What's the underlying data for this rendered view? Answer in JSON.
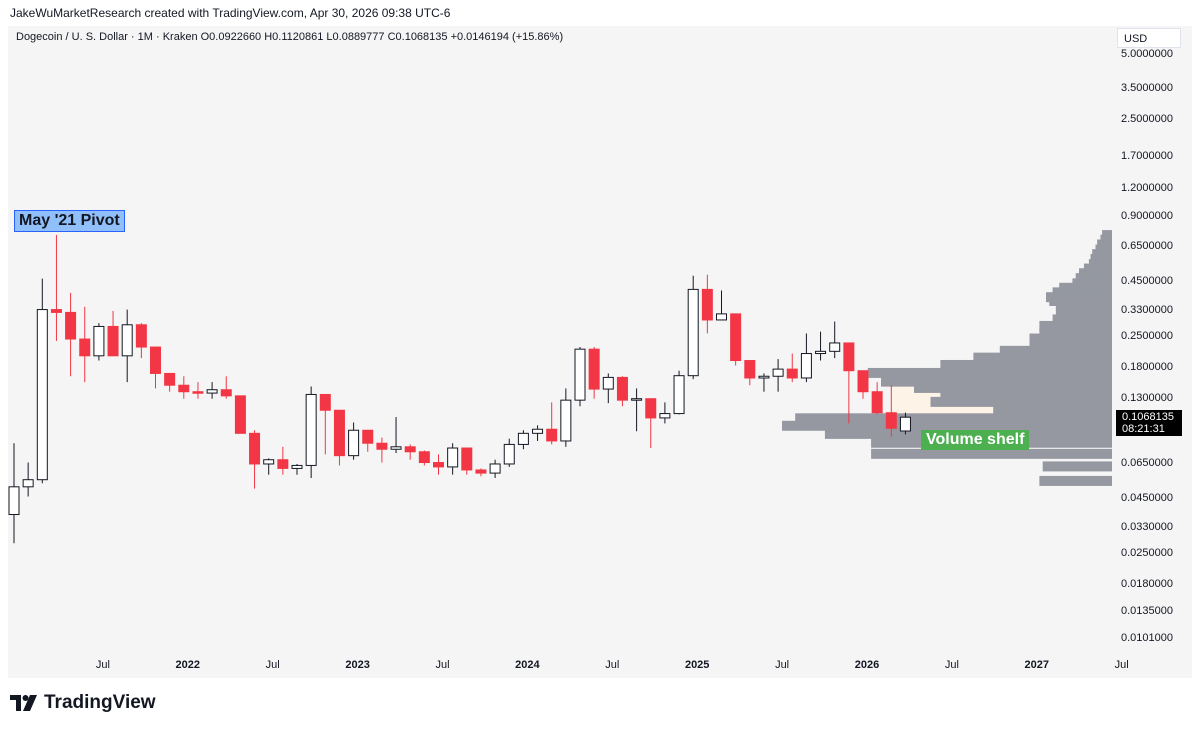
{
  "header": {
    "credit": "JakeWuMarketResearch created with TradingView.com, Apr 30, 2026 09:38 UTC-6",
    "symbol_line": "Dogecoin / U. S. Dollar · 1M · Kraken  O0.0922660  H0.1120861  L0.0889777  C0.1068135  +0.0146194 (+15.86%)",
    "currency": "USD"
  },
  "annotations": {
    "pivot": "May '21 Pivot",
    "shelf": "Volume shelf"
  },
  "last_price": {
    "value": "0.1068135",
    "countdown": "08:21:31"
  },
  "brand": {
    "name": "TradingView",
    "logo_icon": "tradingview-logo-icon"
  },
  "colors": {
    "up_fill": "#ffffff",
    "up_stroke": "#131722",
    "down": "#f23645",
    "volume_profile": "#9598a1",
    "value_area": "#fdf3e6",
    "label_green": "#4caf50",
    "label_blue": "#90bff9"
  },
  "chart_data": {
    "type": "candlestick",
    "interval": "1M",
    "scale": "log",
    "price_axis_ticks": [
      "5.0000000",
      "3.5000000",
      "2.5000000",
      "1.7000000",
      "1.2000000",
      "0.9000000",
      "0.6500000",
      "0.4500000",
      "0.3300000",
      "0.2500000",
      "0.1800000",
      "0.1300000",
      "0.0900000",
      "0.0650000",
      "0.0450000",
      "0.0330000",
      "0.0250000",
      "0.0180000",
      "0.0135000",
      "0.0101000"
    ],
    "time_axis_ticks": [
      {
        "label": "Jul",
        "bold": false
      },
      {
        "label": "2022",
        "bold": true
      },
      {
        "label": "Jul",
        "bold": false
      },
      {
        "label": "2023",
        "bold": true
      },
      {
        "label": "Jul",
        "bold": false
      },
      {
        "label": "2024",
        "bold": true
      },
      {
        "label": "Jul",
        "bold": false
      },
      {
        "label": "2025",
        "bold": true
      },
      {
        "label": "Jul",
        "bold": false
      },
      {
        "label": "2026",
        "bold": true
      },
      {
        "label": "Jul",
        "bold": false
      },
      {
        "label": "2027",
        "bold": true
      },
      {
        "label": "Jul",
        "bold": false
      }
    ],
    "candles": [
      {
        "t": "2021-01",
        "o": 0.038,
        "h": 0.081,
        "l": 0.028,
        "c": 0.051
      },
      {
        "t": "2021-02",
        "o": 0.051,
        "h": 0.066,
        "l": 0.046,
        "c": 0.055
      },
      {
        "t": "2021-03",
        "o": 0.055,
        "h": 0.465,
        "l": 0.053,
        "c": 0.335
      },
      {
        "t": "2021-04",
        "o": 0.335,
        "h": 0.74,
        "l": 0.24,
        "c": 0.325
      },
      {
        "t": "2021-05",
        "o": 0.325,
        "h": 0.4,
        "l": 0.165,
        "c": 0.245
      },
      {
        "t": "2021-06",
        "o": 0.245,
        "h": 0.345,
        "l": 0.155,
        "c": 0.205
      },
      {
        "t": "2021-07",
        "o": 0.205,
        "h": 0.29,
        "l": 0.195,
        "c": 0.28
      },
      {
        "t": "2021-08",
        "o": 0.28,
        "h": 0.33,
        "l": 0.21,
        "c": 0.205
      },
      {
        "t": "2021-09",
        "o": 0.205,
        "h": 0.335,
        "l": 0.155,
        "c": 0.285
      },
      {
        "t": "2021-10",
        "o": 0.285,
        "h": 0.29,
        "l": 0.2,
        "c": 0.225
      },
      {
        "t": "2021-11",
        "o": 0.225,
        "h": 0.225,
        "l": 0.145,
        "c": 0.17
      },
      {
        "t": "2021-12",
        "o": 0.17,
        "h": 0.17,
        "l": 0.14,
        "c": 0.15
      },
      {
        "t": "2022-01",
        "o": 0.15,
        "h": 0.165,
        "l": 0.13,
        "c": 0.14
      },
      {
        "t": "2022-02",
        "o": 0.14,
        "h": 0.155,
        "l": 0.13,
        "c": 0.138
      },
      {
        "t": "2022-03",
        "o": 0.138,
        "h": 0.155,
        "l": 0.13,
        "c": 0.143
      },
      {
        "t": "2022-04",
        "o": 0.143,
        "h": 0.165,
        "l": 0.13,
        "c": 0.134
      },
      {
        "t": "2022-05",
        "o": 0.134,
        "h": 0.134,
        "l": 0.09,
        "c": 0.09
      },
      {
        "t": "2022-06",
        "o": 0.09,
        "h": 0.093,
        "l": 0.05,
        "c": 0.065
      },
      {
        "t": "2022-07",
        "o": 0.065,
        "h": 0.069,
        "l": 0.058,
        "c": 0.068
      },
      {
        "t": "2022-08",
        "o": 0.068,
        "h": 0.078,
        "l": 0.058,
        "c": 0.062
      },
      {
        "t": "2022-09",
        "o": 0.062,
        "h": 0.065,
        "l": 0.058,
        "c": 0.064
      },
      {
        "t": "2022-10",
        "o": 0.064,
        "h": 0.148,
        "l": 0.056,
        "c": 0.136
      },
      {
        "t": "2022-11",
        "o": 0.136,
        "h": 0.136,
        "l": 0.072,
        "c": 0.115
      },
      {
        "t": "2022-12",
        "o": 0.115,
        "h": 0.115,
        "l": 0.064,
        "c": 0.071
      },
      {
        "t": "2023-01",
        "o": 0.071,
        "h": 0.101,
        "l": 0.068,
        "c": 0.093
      },
      {
        "t": "2023-02",
        "o": 0.093,
        "h": 0.092,
        "l": 0.074,
        "c": 0.081
      },
      {
        "t": "2023-03",
        "o": 0.081,
        "h": 0.086,
        "l": 0.066,
        "c": 0.076
      },
      {
        "t": "2023-04",
        "o": 0.076,
        "h": 0.107,
        "l": 0.073,
        "c": 0.078
      },
      {
        "t": "2023-05",
        "o": 0.078,
        "h": 0.08,
        "l": 0.068,
        "c": 0.074
      },
      {
        "t": "2023-06",
        "o": 0.074,
        "h": 0.075,
        "l": 0.064,
        "c": 0.066
      },
      {
        "t": "2023-07",
        "o": 0.066,
        "h": 0.072,
        "l": 0.058,
        "c": 0.063
      },
      {
        "t": "2023-08",
        "o": 0.063,
        "h": 0.081,
        "l": 0.058,
        "c": 0.077
      },
      {
        "t": "2023-09",
        "o": 0.077,
        "h": 0.077,
        "l": 0.058,
        "c": 0.061
      },
      {
        "t": "2023-10",
        "o": 0.061,
        "h": 0.062,
        "l": 0.057,
        "c": 0.059
      },
      {
        "t": "2023-11",
        "o": 0.059,
        "h": 0.068,
        "l": 0.056,
        "c": 0.065
      },
      {
        "t": "2023-12",
        "o": 0.065,
        "h": 0.085,
        "l": 0.063,
        "c": 0.08
      },
      {
        "t": "2024-01",
        "o": 0.08,
        "h": 0.093,
        "l": 0.076,
        "c": 0.09
      },
      {
        "t": "2024-02",
        "o": 0.09,
        "h": 0.098,
        "l": 0.083,
        "c": 0.094
      },
      {
        "t": "2024-03",
        "o": 0.094,
        "h": 0.125,
        "l": 0.08,
        "c": 0.083
      },
      {
        "t": "2024-04",
        "o": 0.083,
        "h": 0.145,
        "l": 0.078,
        "c": 0.128
      },
      {
        "t": "2024-05",
        "o": 0.128,
        "h": 0.225,
        "l": 0.12,
        "c": 0.22
      },
      {
        "t": "2024-06",
        "o": 0.22,
        "h": 0.225,
        "l": 0.13,
        "c": 0.144
      },
      {
        "t": "2024-07",
        "o": 0.144,
        "h": 0.17,
        "l": 0.124,
        "c": 0.163
      },
      {
        "t": "2024-08",
        "o": 0.163,
        "h": 0.165,
        "l": 0.12,
        "c": 0.128
      },
      {
        "t": "2024-09",
        "o": 0.128,
        "h": 0.145,
        "l": 0.092,
        "c": 0.13
      },
      {
        "t": "2024-10",
        "o": 0.13,
        "h": 0.13,
        "l": 0.077,
        "c": 0.106
      },
      {
        "t": "2024-11",
        "o": 0.106,
        "h": 0.125,
        "l": 0.1,
        "c": 0.111
      },
      {
        "t": "2024-12",
        "o": 0.111,
        "h": 0.175,
        "l": 0.11,
        "c": 0.166
      },
      {
        "t": "2025-01",
        "o": 0.166,
        "h": 0.48,
        "l": 0.16,
        "c": 0.415
      },
      {
        "t": "2025-02",
        "o": 0.415,
        "h": 0.485,
        "l": 0.26,
        "c": 0.3
      },
      {
        "t": "2025-03",
        "o": 0.3,
        "h": 0.41,
        "l": 0.3,
        "c": 0.32
      },
      {
        "t": "2025-04",
        "o": 0.32,
        "h": 0.32,
        "l": 0.185,
        "c": 0.195
      },
      {
        "t": "2025-05",
        "o": 0.195,
        "h": 0.195,
        "l": 0.15,
        "c": 0.162
      },
      {
        "t": "2025-06",
        "o": 0.162,
        "h": 0.17,
        "l": 0.14,
        "c": 0.165
      },
      {
        "t": "2025-07",
        "o": 0.165,
        "h": 0.198,
        "l": 0.14,
        "c": 0.178
      },
      {
        "t": "2025-08",
        "o": 0.178,
        "h": 0.21,
        "l": 0.155,
        "c": 0.162
      },
      {
        "t": "2025-09",
        "o": 0.162,
        "h": 0.26,
        "l": 0.155,
        "c": 0.21
      },
      {
        "t": "2025-10",
        "o": 0.21,
        "h": 0.265,
        "l": 0.195,
        "c": 0.215
      },
      {
        "t": "2025-11",
        "o": 0.215,
        "h": 0.295,
        "l": 0.2,
        "c": 0.235
      },
      {
        "t": "2025-12",
        "o": 0.235,
        "h": 0.235,
        "l": 0.1,
        "c": 0.175
      },
      {
        "t": "2026-01",
        "o": 0.175,
        "h": 0.175,
        "l": 0.13,
        "c": 0.14
      },
      {
        "t": "2026-02",
        "o": 0.14,
        "h": 0.155,
        "l": 0.11,
        "c": 0.112
      },
      {
        "t": "2026-03",
        "o": 0.112,
        "h": 0.15,
        "l": 0.087,
        "c": 0.095
      },
      {
        "t": "2026-04",
        "o": 0.092266,
        "h": 0.1120861,
        "l": 0.0889777,
        "c": 0.1068135
      }
    ],
    "value_area": {
      "from_price": 0.096,
      "to_price": 0.17,
      "from": "2026-04",
      "to": "2027-07"
    },
    "volume_profile": [
      {
        "price": 0.735,
        "vol": 0.03
      },
      {
        "price": 0.7,
        "vol": 0.035
      },
      {
        "price": 0.665,
        "vol": 0.045
      },
      {
        "price": 0.63,
        "vol": 0.05
      },
      {
        "price": 0.6,
        "vol": 0.06
      },
      {
        "price": 0.57,
        "vol": 0.065
      },
      {
        "price": 0.54,
        "vol": 0.07
      },
      {
        "price": 0.515,
        "vol": 0.085
      },
      {
        "price": 0.49,
        "vol": 0.1
      },
      {
        "price": 0.465,
        "vol": 0.11
      },
      {
        "price": 0.44,
        "vol": 0.12
      },
      {
        "price": 0.42,
        "vol": 0.16
      },
      {
        "price": 0.4,
        "vol": 0.18
      },
      {
        "price": 0.38,
        "vol": 0.2
      },
      {
        "price": 0.365,
        "vol": 0.19
      },
      {
        "price": 0.345,
        "vol": 0.17
      },
      {
        "price": 0.325,
        "vol": 0.17
      },
      {
        "price": 0.3,
        "vol": 0.18
      },
      {
        "price": 0.28,
        "vol": 0.22
      },
      {
        "price": 0.26,
        "vol": 0.22
      },
      {
        "price": 0.245,
        "vol": 0.25
      },
      {
        "price": 0.23,
        "vol": 0.25
      },
      {
        "price": 0.215,
        "vol": 0.34
      },
      {
        "price": 0.2,
        "vol": 0.42
      },
      {
        "price": 0.185,
        "vol": 0.52
      },
      {
        "price": 0.17,
        "vol": 0.74
      },
      {
        "price": 0.155,
        "vol": 0.7
      },
      {
        "price": 0.145,
        "vol": 0.6
      },
      {
        "price": 0.134,
        "vol": 0.52
      },
      {
        "price": 0.125,
        "vol": 0.55
      },
      {
        "price": 0.116,
        "vol": 0.36
      },
      {
        "price": 0.105,
        "vol": 0.96
      },
      {
        "price": 0.097,
        "vol": 1.0
      },
      {
        "price": 0.089,
        "vol": 0.87
      },
      {
        "price": 0.081,
        "vol": 0.73
      },
      {
        "price": 0.072,
        "vol": 0.73
      },
      {
        "price": 0.063,
        "vol": 0.21
      },
      {
        "price": 0.054,
        "vol": 0.22
      }
    ]
  }
}
